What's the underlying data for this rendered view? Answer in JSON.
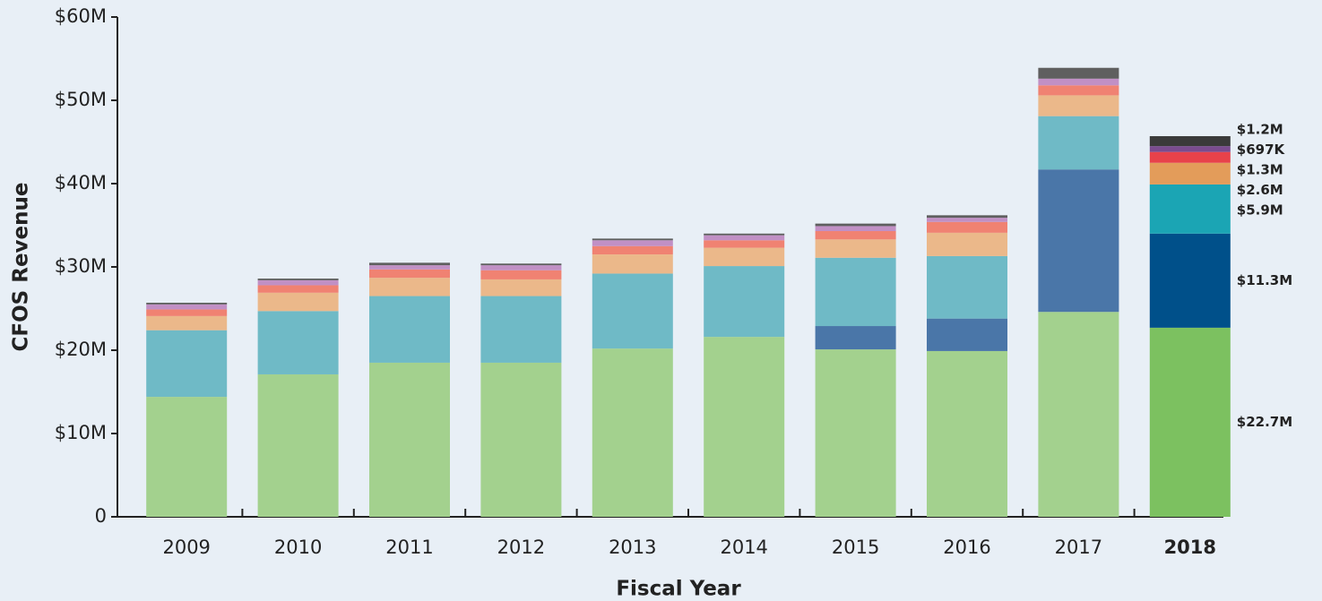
{
  "chart_data": {
    "type": "stacked_bar",
    "x_label": "Fiscal Year",
    "y_label": "CFOS Revenue",
    "categories": [
      "2009",
      "2010",
      "2011",
      "2012",
      "2013",
      "2014",
      "2015",
      "2016",
      "2017",
      "2018"
    ],
    "highlight_index": 9,
    "ylim": [
      0,
      60
    ],
    "yticks": [
      0,
      {
        "value": 10,
        "label": "$10M"
      },
      {
        "value": 20,
        "label": "$20M"
      },
      {
        "value": 30,
        "label": "$30M"
      },
      {
        "value": 40,
        "label": "$40M"
      },
      {
        "value": 50,
        "label": "$50M"
      },
      {
        "value": 60,
        "label": "$60M"
      }
    ],
    "series": [
      {
        "color": "#a3d18e",
        "highlight_color": "#7cc160",
        "label_color": "#7cc160",
        "values": [
          14.4,
          17.1,
          18.5,
          18.5,
          20.2,
          21.6,
          20.1,
          19.9,
          24.6,
          22.7
        ],
        "value_labels": [
          null,
          null,
          null,
          null,
          null,
          null,
          null,
          null,
          null,
          "$22.7M"
        ]
      },
      {
        "color": "#4a76a8",
        "highlight_color": "#00508a",
        "label_color": "#00508a",
        "values": [
          0,
          0,
          0,
          0,
          0,
          0,
          2.8,
          3.9,
          17.1,
          11.3
        ],
        "value_labels": [
          null,
          null,
          null,
          null,
          null,
          null,
          null,
          null,
          null,
          "$11.3M"
        ]
      },
      {
        "color": "#6fbac6",
        "highlight_color": "#1ba5b4",
        "label_color": "#1ba5b4",
        "values": [
          8.0,
          7.6,
          8.0,
          8.0,
          9.0,
          8.5,
          8.2,
          7.5,
          6.4,
          5.9
        ],
        "value_labels": [
          null,
          null,
          null,
          null,
          null,
          null,
          null,
          null,
          null,
          "$5.9M"
        ]
      },
      {
        "color": "#ebb88a",
        "highlight_color": "#e39c5a",
        "label_color": "#e8a060",
        "values": [
          1.7,
          2.2,
          2.2,
          2.0,
          2.3,
          2.2,
          2.2,
          2.8,
          2.5,
          2.6
        ],
        "value_labels": [
          null,
          null,
          null,
          null,
          null,
          null,
          null,
          null,
          null,
          "$2.6M"
        ]
      },
      {
        "color": "#f08272",
        "highlight_color": "#e8424a",
        "label_color": "#e8424a",
        "values": [
          0.8,
          0.9,
          1.0,
          1.1,
          1.0,
          0.9,
          1.0,
          1.3,
          1.2,
          1.3
        ],
        "value_labels": [
          null,
          null,
          null,
          null,
          null,
          null,
          null,
          null,
          null,
          "$1.3M"
        ]
      },
      {
        "color": "#c190c5",
        "highlight_color": "#7a4c8f",
        "label_color": "#c157b0",
        "values": [
          0.6,
          0.6,
          0.5,
          0.6,
          0.7,
          0.6,
          0.6,
          0.5,
          0.8,
          0.697
        ],
        "value_labels": [
          null,
          null,
          null,
          null,
          null,
          null,
          null,
          null,
          null,
          "$697K"
        ]
      },
      {
        "color": "#5f5f5f",
        "highlight_color": "#3a3a3a",
        "label_color": "#333333",
        "values": [
          0.2,
          0.2,
          0.3,
          0.2,
          0.2,
          0.2,
          0.3,
          0.3,
          1.3,
          1.2
        ],
        "value_labels": [
          null,
          null,
          null,
          null,
          null,
          null,
          null,
          null,
          null,
          "$1.2M"
        ]
      }
    ]
  }
}
